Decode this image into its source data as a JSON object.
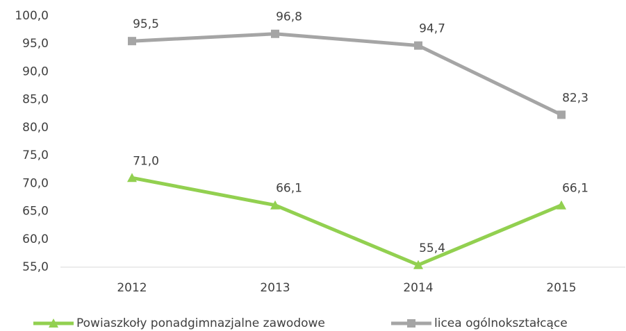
{
  "chart_data": {
    "type": "line",
    "categories": [
      "2012",
      "2013",
      "2014",
      "2015"
    ],
    "series": [
      {
        "name": "Powiaszkoły ponadgimnazjalne zawodowe",
        "color": "#92d050",
        "marker": "triangle",
        "values": [
          71.0,
          66.1,
          55.4,
          66.1
        ],
        "value_labels": [
          "71,0",
          "66,1",
          "55,4",
          "66,1"
        ]
      },
      {
        "name": "licea ogólnokształcące",
        "color": "#a5a5a5",
        "marker": "square",
        "values": [
          95.5,
          96.8,
          94.7,
          82.3
        ],
        "value_labels": [
          "95,5",
          "96,8",
          "94,7",
          "82,3"
        ]
      }
    ],
    "ylim": [
      55,
      100
    ],
    "yticks": [
      {
        "value": 55,
        "label": "55,0"
      },
      {
        "value": 60,
        "label": "60,0"
      },
      {
        "value": 65,
        "label": "65,0"
      },
      {
        "value": 70,
        "label": "70,0"
      },
      {
        "value": 75,
        "label": "75,0"
      },
      {
        "value": 80,
        "label": "80,0"
      },
      {
        "value": 85,
        "label": "85,0"
      },
      {
        "value": 90,
        "label": "90,0"
      },
      {
        "value": 95,
        "label": "95,0"
      },
      {
        "value": 100,
        "label": "100,0"
      }
    ],
    "grid": false,
    "legend": "bottom"
  }
}
